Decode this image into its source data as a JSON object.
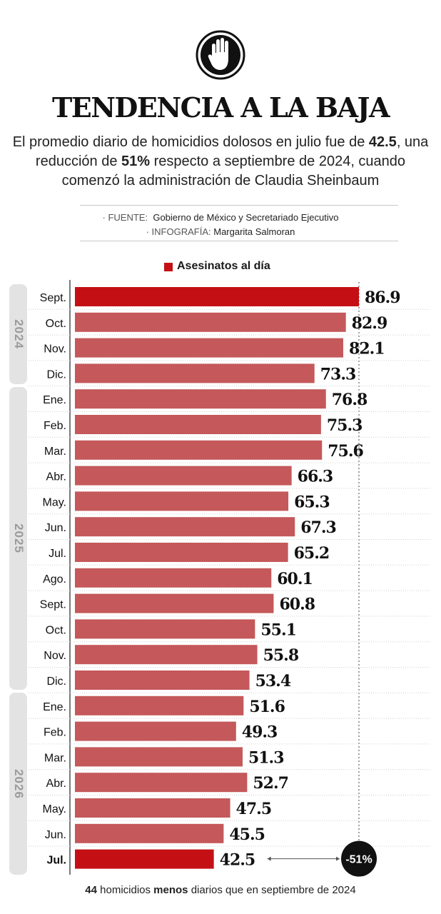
{
  "header": {
    "title": "TENDENCIA A LA BAJA",
    "subtitle_1": "El promedio diario de homicidios dolosos en julio fue de ",
    "subtitle_b1": "42.5",
    "subtitle_2": ", una reducción de ",
    "subtitle_b2": "51%",
    "subtitle_3": " respecto a septiembre de 2024, cuando comenzó la administración de Claudia Sheinbaum"
  },
  "credits": {
    "source_key": "· FUENTE:",
    "source_value": "Gobierno de México y Secretariado Ejecutivo",
    "info_key": "· INFOGRAFÍA:",
    "info_value": "Margarita Salmoran"
  },
  "legend": {
    "label": "Asesinatos al día",
    "color": "#c41015"
  },
  "chart_data": {
    "type": "bar",
    "orientation": "horizontal",
    "categories": [
      "Sept.",
      "Oct.",
      "Nov.",
      "Dic.",
      "Ene.",
      "Feb.",
      "Mar.",
      "Abr.",
      "May.",
      "Jun.",
      "Jul.",
      "Ago.",
      "Sept.",
      "Oct.",
      "Nov.",
      "Dic.",
      "Ene.",
      "Feb.",
      "Mar.",
      "Abr.",
      "May.",
      "Jun.",
      "Jul."
    ],
    "groups": [
      {
        "year": "2024",
        "count": 4
      },
      {
        "year": "2025",
        "count": 12
      },
      {
        "year": "2026",
        "count": 7
      }
    ],
    "series": [
      {
        "name": "Asesinatos al día",
        "values": [
          86.9,
          82.9,
          82.1,
          73.3,
          76.8,
          75.3,
          75.6,
          66.3,
          65.3,
          67.3,
          65.2,
          60.1,
          60.8,
          55.1,
          55.8,
          53.4,
          51.6,
          49.3,
          51.3,
          52.7,
          47.5,
          45.5,
          42.5
        ],
        "labels": [
          "86.9",
          "82.9",
          "82.1",
          "73.3",
          "76.8",
          "75.3",
          "75.6",
          "66.3",
          "65.3",
          "67.3",
          "65.2",
          "60.1",
          "60.8",
          "55.1",
          "55.8",
          "53.4",
          "51.6",
          "49.3",
          "51.3",
          "52.7",
          "47.5",
          "45.5",
          "42.5"
        ]
      }
    ],
    "highlight_indices": [
      0,
      22
    ],
    "bar_color": "#c4585a",
    "highlight_color": "#c41015",
    "annotation": "-51%",
    "xlim": [
      0,
      86.9
    ],
    "grid": "dotted row separators"
  },
  "footnote": {
    "b1": "44",
    "t1": " homicidios ",
    "b2": "menos",
    "t2": " diarios que en septiembre de 2024"
  }
}
